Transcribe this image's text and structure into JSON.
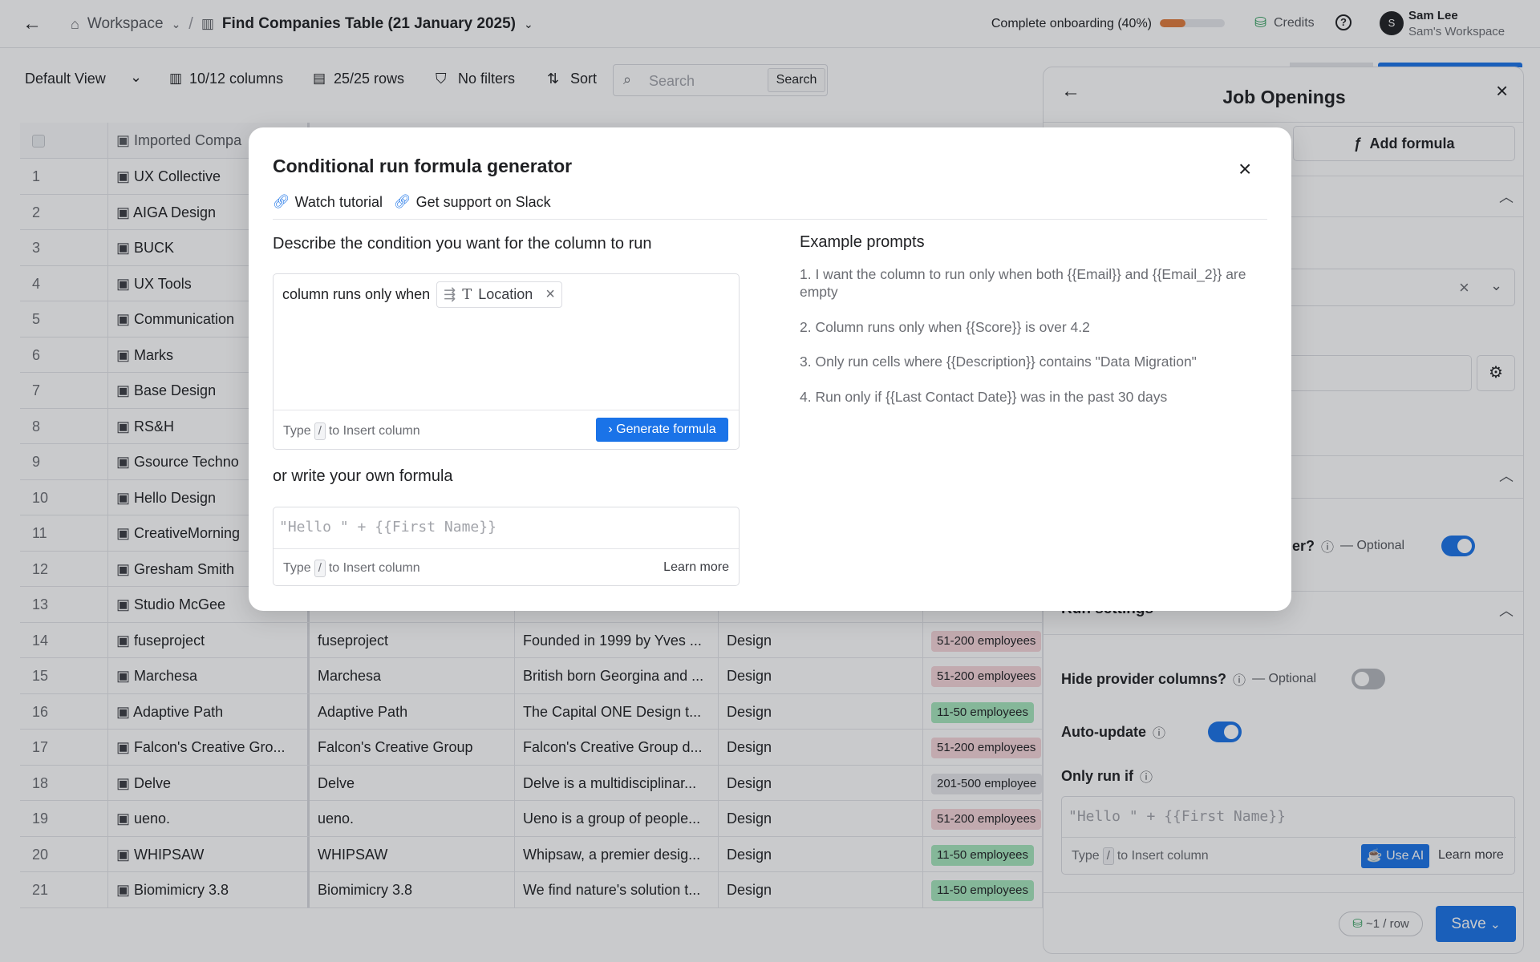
{
  "header": {
    "breadcrumb_workspace": "Workspace",
    "breadcrumb_separator": "/",
    "table_title": "Find Companies Table (21 January 2025)",
    "onboarding_label": "Complete onboarding (40%)",
    "onboarding_progress": 0.4,
    "credits_label": "Credits",
    "user_name": "Sam Lee",
    "user_workspace": "Sam's Workspace",
    "avatar_initial": "S"
  },
  "toolbar": {
    "view": "Default View",
    "columns": "10/12 columns",
    "rows": "25/25 rows",
    "filters": "No filters",
    "sort": "Sort",
    "search_placeholder": "Search",
    "search_button": "Search"
  },
  "table": {
    "header_col1": "Imported Compa",
    "rows": [
      {
        "n": "1",
        "name": "UX Collective"
      },
      {
        "n": "2",
        "name": "AIGA Design"
      },
      {
        "n": "3",
        "name": "BUCK"
      },
      {
        "n": "4",
        "name": "UX Tools"
      },
      {
        "n": "5",
        "name": "Communication"
      },
      {
        "n": "6",
        "name": "Marks"
      },
      {
        "n": "7",
        "name": "Base Design"
      },
      {
        "n": "8",
        "name": "RS&H"
      },
      {
        "n": "9",
        "name": "Gsource Techno"
      },
      {
        "n": "10",
        "name": "Hello Design"
      },
      {
        "n": "11",
        "name": "CreativeMorning"
      },
      {
        "n": "12",
        "name": "Gresham Smith"
      },
      {
        "n": "13",
        "name": "Studio McGee"
      },
      {
        "n": "14",
        "name": "fuseproject",
        "name2": "fuseproject",
        "desc": "Founded in 1999 by Yves ...",
        "industry": "Design",
        "size": "51-200 employees",
        "size_tone": "red"
      },
      {
        "n": "15",
        "name": "Marchesa",
        "name2": "Marchesa",
        "desc": "British born Georgina and ...",
        "industry": "Design",
        "size": "51-200 employees",
        "size_tone": "red"
      },
      {
        "n": "16",
        "name": "Adaptive Path",
        "name2": "Adaptive Path",
        "desc": "The Capital ONE Design t...",
        "industry": "Design",
        "size": "11-50 employees",
        "size_tone": "green"
      },
      {
        "n": "17",
        "name": "Falcon's Creative Gro...",
        "name2": "Falcon's Creative Group",
        "desc": "Falcon's Creative Group d...",
        "industry": "Design",
        "size": "51-200 employees",
        "size_tone": "red"
      },
      {
        "n": "18",
        "name": "Delve",
        "name2": "Delve",
        "desc": "Delve is a multidisciplinar...",
        "industry": "Design",
        "size": "201-500 employee",
        "size_tone": "gray"
      },
      {
        "n": "19",
        "name": "ueno.",
        "name2": "ueno.",
        "desc": "Ueno is a group of people...",
        "industry": "Design",
        "size": "51-200 employees",
        "size_tone": "red"
      },
      {
        "n": "20",
        "name": "WHIPSAW",
        "name2": "WHIPSAW",
        "desc": "Whipsaw, a premier desig...",
        "industry": "Design",
        "size": "11-50 employees",
        "size_tone": "green"
      },
      {
        "n": "21",
        "name": "Biomimicry 3.8",
        "name2": "Biomimicry 3.8",
        "desc": "We find nature's solution t...",
        "industry": "Design",
        "size": "11-50 employees",
        "size_tone": "green"
      }
    ]
  },
  "badge_colors": {
    "red": "#f6d5d9",
    "green": "#a6e6bd",
    "gray": "#e6e7ea"
  },
  "panel": {
    "title": "Job Openings",
    "add_formula": "Add formula",
    "partial_label": "er?",
    "optional": "— Optional",
    "run_settings": "Run settings",
    "hide_provider_label": "Hide provider columns?",
    "auto_update_label": "Auto-update",
    "only_run_if_label": "Only run if",
    "formula_placeholder": "\"Hello \" + {{First Name}}",
    "type_label": "Type",
    "slash": "/",
    "insert_label": "to Insert column",
    "use_ai": "Use AI",
    "learn_more": "Learn more",
    "cost": "~1 / row",
    "save": "Save",
    "toggles": {
      "partial": true,
      "hide_provider": false,
      "auto_update": true
    }
  },
  "modal": {
    "title": "Conditional run formula generator",
    "watch_tutorial": "Watch tutorial",
    "slack_support": "Get support on Slack",
    "describe_heading": "Describe the condition you want for the column to run",
    "prompt_prefix": "column runs only when",
    "chip_label": "Location",
    "type_label": "Type",
    "slash": "/",
    "insert_label": "to Insert column",
    "generate": "Generate formula",
    "own_heading": "or write your own formula",
    "formula_placeholder": "\"Hello \" + {{First Name}}",
    "learn_more": "Learn more",
    "examples_heading": "Example prompts",
    "examples": [
      "1. I want the column to run only when both {{Email}} and {{Email_2}} are empty",
      "2. Column runs only when {{Score}} is over 4.2",
      "3. Only run cells where {{Description}} contains \"Data Migration\"",
      "4. Run only if {{Last Contact Date}} was in the past 30 days"
    ]
  },
  "colors": {
    "accent": "#1a73e8",
    "progress": "#e07b3c"
  }
}
